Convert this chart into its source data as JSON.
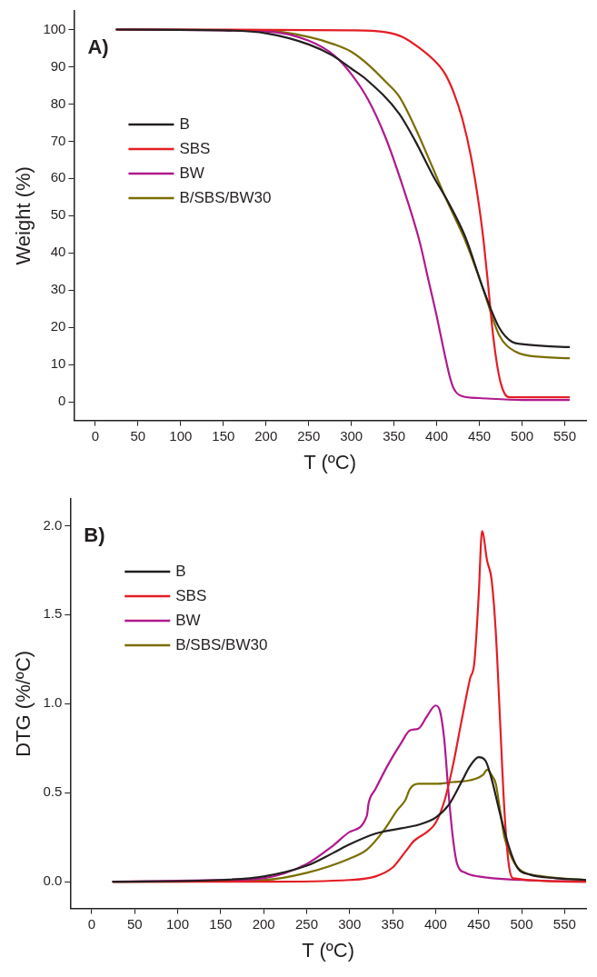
{
  "chart_data": [
    {
      "type": "line",
      "xlabel": "T (ºC)",
      "ylabel": "Weight (%)",
      "annotations": [
        "A)"
      ],
      "legend": "top left",
      "grid": false,
      "marker": "none",
      "line_style": "solid",
      "xlim": [
        -25,
        575
      ],
      "xticks": [
        0,
        50,
        100,
        150,
        200,
        250,
        300,
        350,
        400,
        450,
        500,
        550
      ],
      "ylim": [
        -5,
        105
      ],
      "yticks": [
        0,
        10,
        20,
        30,
        40,
        50,
        60,
        70,
        80,
        90,
        100
      ],
      "series": [
        {
          "name": "B",
          "color": "#231f20",
          "x": [
            25,
            150,
            200,
            250,
            278,
            300,
            317,
            356,
            375,
            395,
            415,
            434,
            454,
            473,
            489,
            500,
            525,
            555
          ],
          "values": [
            100,
            99.8,
            99,
            96,
            93,
            89.5,
            86.7,
            77.4,
            70,
            61,
            53,
            44,
            30.6,
            20,
            16,
            15.5,
            15,
            14.7
          ]
        },
        {
          "name": "SBS",
          "color": "#e31e24",
          "x": [
            25,
            300,
            340,
            360,
            380,
            400,
            410,
            420,
            430,
            440,
            450,
            455,
            460,
            465,
            470,
            475,
            480,
            485,
            555
          ],
          "values": [
            100,
            99.8,
            99.3,
            98,
            95,
            91,
            88,
            83,
            76,
            66,
            52,
            43,
            32,
            20,
            11,
            5,
            2,
            1.2,
            1.2
          ]
        },
        {
          "name": "BW",
          "color": "#b0198c",
          "x": [
            25,
            200,
            250,
            280,
            300,
            320,
            340,
            360,
            380,
            390,
            400,
            410,
            415,
            420,
            430,
            450,
            500,
            555
          ],
          "values": [
            100,
            99.5,
            97,
            93,
            88,
            81,
            71,
            58,
            43,
            33,
            23,
            12,
            7,
            3.5,
            1.5,
            1,
            0.5,
            0.5
          ]
        },
        {
          "name": "B/SBS/BW30",
          "color": "#7a6e00",
          "x": [
            25,
            200,
            250,
            280,
            300,
            320,
            340,
            356,
            375,
            395,
            410,
            434,
            454,
            473,
            492,
            525,
            555
          ],
          "values": [
            100,
            99.7,
            98,
            96,
            94,
            90.5,
            86,
            82,
            73.5,
            63,
            55,
            43,
            30.6,
            18,
            13.5,
            12,
            11.7
          ]
        }
      ]
    },
    {
      "type": "line",
      "xlabel": "T (ºC)",
      "ylabel": "DTG (%/ºC)",
      "annotations": [
        "B)"
      ],
      "legend": "top left",
      "grid": false,
      "marker": "none",
      "line_style": "solid",
      "xlim": [
        -25,
        575
      ],
      "xticks": [
        0,
        50,
        100,
        150,
        200,
        250,
        300,
        350,
        400,
        450,
        500,
        550
      ],
      "ylim": [
        -0.15,
        2.15
      ],
      "yticks": [
        {
          "value": 0,
          "label": "0.0"
        },
        0.5,
        {
          "value": 1,
          "label": "1.0"
        },
        1.5,
        {
          "value": 2,
          "label": "2.0"
        }
      ],
      "series": [
        {
          "name": "B",
          "color": "#231f20",
          "x": [
            25,
            150,
            200,
            250,
            280,
            300,
            330,
            360,
            380,
            400,
            415,
            430,
            440,
            450,
            458,
            465,
            475,
            485,
            495,
            510,
            540,
            575
          ],
          "values": [
            0,
            0.01,
            0.03,
            0.09,
            0.16,
            0.21,
            0.27,
            0.3,
            0.32,
            0.36,
            0.43,
            0.56,
            0.65,
            0.7,
            0.68,
            0.58,
            0.38,
            0.2,
            0.08,
            0.04,
            0.02,
            0.01
          ]
        },
        {
          "name": "SBS",
          "color": "#e31e24",
          "x": [
            25,
            200,
            300,
            330,
            350,
            365,
            375,
            390,
            400,
            410,
            420,
            430,
            440,
            445,
            450,
            454,
            460,
            465,
            470,
            475,
            480,
            485,
            490,
            575
          ],
          "values": [
            0,
            0,
            0.01,
            0.03,
            0.08,
            0.17,
            0.23,
            0.28,
            0.33,
            0.45,
            0.65,
            0.9,
            1.14,
            1.23,
            1.6,
            1.97,
            1.8,
            1.7,
            1.4,
            0.9,
            0.4,
            0.1,
            0.02,
            0
          ]
        },
        {
          "name": "BW",
          "color": "#b0198c",
          "x": [
            25,
            150,
            200,
            250,
            280,
            300,
            320,
            322,
            330,
            345,
            360,
            370,
            380,
            390,
            400,
            405,
            410,
            415,
            420,
            425,
            435,
            450,
            500,
            575
          ],
          "values": [
            0,
            0.01,
            0.02,
            0.1,
            0.2,
            0.28,
            0.37,
            0.44,
            0.52,
            0.66,
            0.78,
            0.85,
            0.86,
            0.93,
            0.99,
            0.96,
            0.8,
            0.5,
            0.25,
            0.1,
            0.05,
            0.03,
            0.01,
            0
          ]
        },
        {
          "name": "B/SBS/BW30",
          "color": "#7a6e00",
          "x": [
            25,
            200,
            250,
            300,
            320,
            340,
            355,
            365,
            370,
            380,
            400,
            420,
            440,
            455,
            460,
            465,
            470,
            475,
            480,
            490,
            500,
            525,
            575
          ],
          "values": [
            0,
            0.01,
            0.05,
            0.13,
            0.18,
            0.29,
            0.4,
            0.46,
            0.52,
            0.55,
            0.55,
            0.56,
            0.57,
            0.6,
            0.63,
            0.6,
            0.55,
            0.4,
            0.25,
            0.12,
            0.06,
            0.03,
            0.01
          ]
        }
      ]
    }
  ]
}
